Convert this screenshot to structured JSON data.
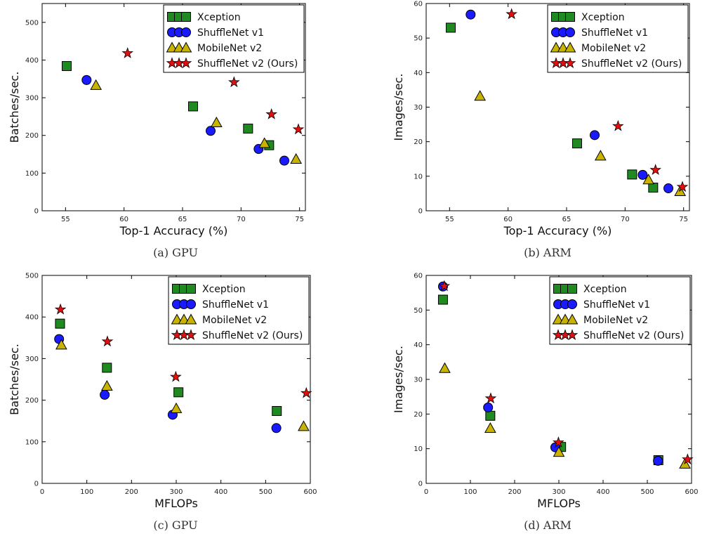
{
  "legend_entries": [
    "Xception",
    "ShuffleNet v1",
    "MobileNet v2",
    "ShuffleNet v2 (Ours)"
  ],
  "colors": {
    "xception": "#1f8a1f",
    "shufflenet_v1": "#1a1aff",
    "mobilenet_v2": "#c8b400",
    "shufflenet_v2": "#e01010"
  },
  "chart_data": [
    {
      "id": "a",
      "type": "scatter",
      "caption": "(a) GPU",
      "xlabel": "Top-1 Accuracy (%)",
      "ylabel": "Batches/sec.",
      "xlim": [
        53,
        75.5
      ],
      "ylim": [
        0,
        550
      ],
      "xticks": [
        55,
        60,
        65,
        70,
        75
      ],
      "yticks": [
        0,
        100,
        200,
        300,
        400,
        500
      ],
      "legend": "top-right",
      "series": [
        {
          "name": "Xception",
          "marker": "square",
          "points": [
            [
              55.1,
              384
            ],
            [
              65.9,
              277
            ],
            [
              70.6,
              218
            ],
            [
              72.4,
              174
            ]
          ]
        },
        {
          "name": "ShuffleNet v1",
          "marker": "circle",
          "points": [
            [
              56.8,
              347
            ],
            [
              67.4,
              212
            ],
            [
              71.5,
              164
            ],
            [
              73.7,
              133
            ]
          ]
        },
        {
          "name": "MobileNet v2",
          "marker": "triangle",
          "points": [
            [
              57.6,
              333
            ],
            [
              67.9,
              234
            ],
            [
              72.0,
              179
            ],
            [
              74.7,
              137
            ]
          ]
        },
        {
          "name": "ShuffleNet v2 (Ours)",
          "marker": "star",
          "points": [
            [
              60.3,
              418
            ],
            [
              69.4,
              341
            ],
            [
              72.6,
              256
            ],
            [
              74.9,
              216
            ]
          ]
        }
      ]
    },
    {
      "id": "b",
      "type": "scatter",
      "caption": "(b) ARM",
      "xlabel": "Top-1 Accuracy (%)",
      "ylabel": "Images/sec.",
      "xlim": [
        53,
        75.5
      ],
      "ylim": [
        0,
        60
      ],
      "xticks": [
        55,
        60,
        65,
        70,
        75
      ],
      "yticks": [
        0,
        10,
        20,
        30,
        40,
        50,
        60
      ],
      "legend": "top-right",
      "series": [
        {
          "name": "Xception",
          "marker": "square",
          "points": [
            [
              55.1,
              53
            ],
            [
              65.9,
              19.5
            ],
            [
              70.6,
              10.5
            ],
            [
              72.4,
              6.7
            ]
          ]
        },
        {
          "name": "ShuffleNet v1",
          "marker": "circle",
          "points": [
            [
              56.8,
              56.8
            ],
            [
              67.4,
              21.9
            ],
            [
              71.5,
              10.4
            ],
            [
              73.7,
              6.5
            ]
          ]
        },
        {
          "name": "MobileNet v2",
          "marker": "triangle",
          "points": [
            [
              57.6,
              33.2
            ],
            [
              67.9,
              15.9
            ],
            [
              72.0,
              9.0
            ],
            [
              74.7,
              5.6
            ]
          ]
        },
        {
          "name": "ShuffleNet v2 (Ours)",
          "marker": "star",
          "points": [
            [
              60.3,
              56.9
            ],
            [
              69.4,
              24.5
            ],
            [
              72.6,
              11.8
            ],
            [
              74.9,
              6.9
            ]
          ]
        }
      ]
    },
    {
      "id": "c",
      "type": "scatter",
      "caption": "(c) GPU",
      "xlabel": "MFLOPs",
      "ylabel": "Batches/sec.",
      "xlim": [
        0,
        600
      ],
      "ylim": [
        0,
        500
      ],
      "xticks": [
        0,
        100,
        200,
        300,
        400,
        500,
        600
      ],
      "yticks": [
        0,
        100,
        200,
        300,
        400,
        500
      ],
      "legend": "top-right",
      "series": [
        {
          "name": "Xception",
          "marker": "square",
          "points": [
            [
              40,
              384
            ],
            [
              145,
              278
            ],
            [
              305,
              219
            ],
            [
              525,
              174
            ]
          ]
        },
        {
          "name": "ShuffleNet v1",
          "marker": "circle",
          "points": [
            [
              38,
              347
            ],
            [
              140,
              213
            ],
            [
              292,
              165
            ],
            [
              524,
              133
            ]
          ]
        },
        {
          "name": "MobileNet v2",
          "marker": "triangle",
          "points": [
            [
              43,
              333
            ],
            [
              145,
              234
            ],
            [
              300,
              180
            ],
            [
              585,
              137
            ]
          ]
        },
        {
          "name": "ShuffleNet v2 (Ours)",
          "marker": "star",
          "points": [
            [
              41,
              418
            ],
            [
              146,
              341
            ],
            [
              299,
              256
            ],
            [
              591,
              217
            ]
          ]
        }
      ]
    },
    {
      "id": "d",
      "type": "scatter",
      "caption": "(d) ARM",
      "xlabel": "MFLOPs",
      "ylabel": "Images/sec.",
      "xlim": [
        0,
        600
      ],
      "ylim": [
        0,
        60
      ],
      "xticks": [
        0,
        100,
        200,
        300,
        400,
        500,
        600
      ],
      "yticks": [
        0,
        10,
        20,
        30,
        40,
        50,
        60
      ],
      "legend": "top-right",
      "series": [
        {
          "name": "Xception",
          "marker": "square",
          "points": [
            [
              38,
              53
            ],
            [
              145,
              19.5
            ],
            [
              305,
              10.5
            ],
            [
              525,
              6.7
            ]
          ]
        },
        {
          "name": "ShuffleNet v1",
          "marker": "circle",
          "points": [
            [
              38,
              56.8
            ],
            [
              140,
              21.9
            ],
            [
              292,
              10.4
            ],
            [
              524,
              6.5
            ]
          ]
        },
        {
          "name": "MobileNet v2",
          "marker": "triangle",
          "points": [
            [
              42,
              33.2
            ],
            [
              145,
              15.9
            ],
            [
              300,
              9.0
            ],
            [
              585,
              5.6
            ]
          ]
        },
        {
          "name": "ShuffleNet v2 (Ours)",
          "marker": "star",
          "points": [
            [
              41,
              56.9
            ],
            [
              146,
              24.5
            ],
            [
              299,
              11.8
            ],
            [
              591,
              6.9
            ]
          ]
        }
      ]
    }
  ]
}
